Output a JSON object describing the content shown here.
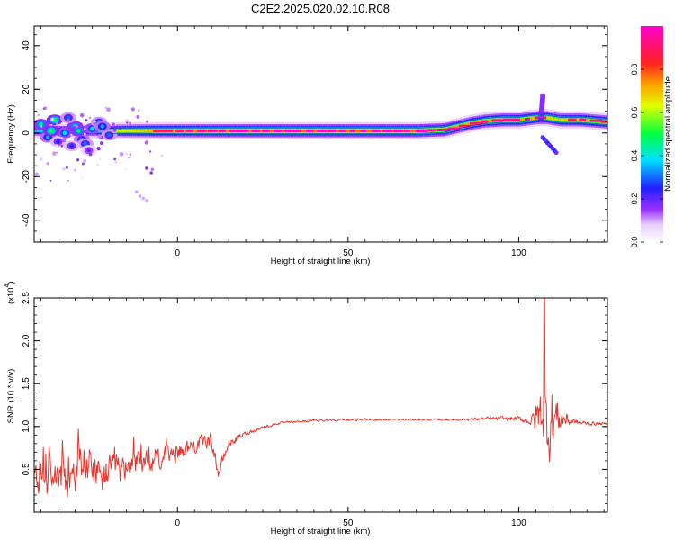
{
  "title": "C2E2.2025.020.02.10.R08",
  "colors": {
    "snr_line": "#e8362f",
    "band_ridge": "#e63a5a",
    "axis": "#000000"
  },
  "chart_data": [
    {
      "type": "heatmap",
      "xlabel": "Height of straight line (km)",
      "ylabel": "Frequency (Hz)",
      "xlim": [
        -42,
        126
      ],
      "ylim": [
        -50,
        49
      ],
      "x_ticks": [
        0,
        50,
        100
      ],
      "x_tick_labels": [
        "0",
        "50",
        "100"
      ],
      "y_ticks": [
        -40,
        -20,
        0,
        20,
        40
      ],
      "y_tick_labels": [
        "-40",
        "-20",
        "0",
        "20",
        "40"
      ],
      "colorbar": {
        "label": "Normalized spectral amplitude",
        "range": [
          0,
          1
        ],
        "ticks": [
          0,
          0.2,
          0.4,
          0.6,
          0.8
        ],
        "tick_labels": [
          "0.0",
          "0.2",
          "0.4",
          "0.6",
          "0.8"
        ],
        "colormap": "rainbow (white-violet-blue-cyan-green-yellow-orange-red-magenta)"
      },
      "band_centerline": {
        "x": [
          -42,
          -35,
          -25,
          -20,
          -15,
          -10,
          -5,
          0,
          5,
          10,
          20,
          30,
          40,
          50,
          60,
          70,
          78,
          82,
          86,
          90,
          95,
          100,
          105,
          108,
          112,
          118,
          126
        ],
        "y": [
          1,
          1,
          1,
          1,
          1,
          1,
          1,
          1,
          1,
          1,
          1,
          1,
          1,
          1,
          1,
          1,
          1.5,
          3,
          4.5,
          5.5,
          6,
          6,
          7,
          7,
          6,
          6,
          5
        ]
      },
      "band_peak": [
        0.6,
        0.65,
        0.7,
        0.75,
        0.8,
        0.85,
        0.88,
        0.9,
        0.92,
        0.95,
        0.97,
        0.98,
        0.98,
        0.98,
        0.98,
        0.98,
        0.95,
        0.9,
        0.88,
        0.9,
        0.92,
        0.9,
        0.88,
        0.85,
        0.85,
        0.88,
        0.9
      ],
      "scatter_clusters": {
        "x": [
          -40,
          -38,
          -36,
          -33,
          -30,
          -28,
          -25,
          -23,
          -20,
          -35,
          -32,
          -29,
          -27,
          -26,
          -31,
          -22,
          -37
        ],
        "y": [
          4,
          -2,
          6,
          0,
          3,
          -3,
          2,
          5,
          -1,
          -4,
          7,
          1,
          -5,
          -8,
          -6,
          3,
          1
        ],
        "amp": [
          0.45,
          0.35,
          0.5,
          0.4,
          0.45,
          0.35,
          0.4,
          0.3,
          0.3,
          0.25,
          0.3,
          0.45,
          0.3,
          0.2,
          0.25,
          0.35,
          0.5
        ]
      },
      "spike": {
        "x": 106.5,
        "y_range": [
          6,
          17
        ],
        "tail_x": [
          107,
          111
        ],
        "tail_y": [
          -2,
          -9
        ]
      }
    },
    {
      "type": "line",
      "xlabel": "Height of straight line (km)",
      "ylabel": "SNR (10 * v/v)",
      "y_multiplier_label": "(x10",
      "y_multiplier_exp": "4",
      "y_multiplier_close": ")",
      "xlim": [
        -42,
        126
      ],
      "ylim": [
        0,
        2.5
      ],
      "x_ticks": [
        0,
        50,
        100
      ],
      "x_tick_labels": [
        "0",
        "50",
        "100"
      ],
      "y_ticks": [
        0.5,
        1.0,
        1.5,
        2.0,
        2.5
      ],
      "y_tick_labels": [
        "0.5",
        "1.0",
        "1.5",
        "2.0",
        "2.5"
      ],
      "trend": {
        "x": [
          -42,
          -35,
          -30,
          -25,
          -20,
          -15,
          -10,
          -5,
          0,
          5,
          10,
          12,
          15,
          20,
          25,
          30,
          40,
          50,
          60,
          70,
          80,
          90,
          100,
          104,
          107,
          108,
          110,
          112,
          114,
          118,
          126
        ],
        "y": [
          0.35,
          0.38,
          0.4,
          0.42,
          0.45,
          0.5,
          0.55,
          0.62,
          0.7,
          0.78,
          0.85,
          0.45,
          0.8,
          0.92,
          0.99,
          1.04,
          1.07,
          1.08,
          1.08,
          1.08,
          1.08,
          1.09,
          1.09,
          1.05,
          1.2,
          1.05,
          1.1,
          1.1,
          1.08,
          1.04,
          1.03
        ]
      },
      "noise": {
        "x": [
          -42,
          -30,
          -20,
          -10,
          0,
          10,
          20,
          30,
          80,
          95,
          103,
          106,
          109,
          112,
          116,
          126
        ],
        "amp": [
          0.3,
          0.32,
          0.3,
          0.2,
          0.15,
          0.12,
          0.04,
          0.02,
          0.015,
          0.04,
          0.05,
          0.4,
          0.7,
          0.25,
          0.05,
          0.02
        ]
      },
      "peak": {
        "x": 107.5,
        "y": 2.5
      }
    }
  ]
}
